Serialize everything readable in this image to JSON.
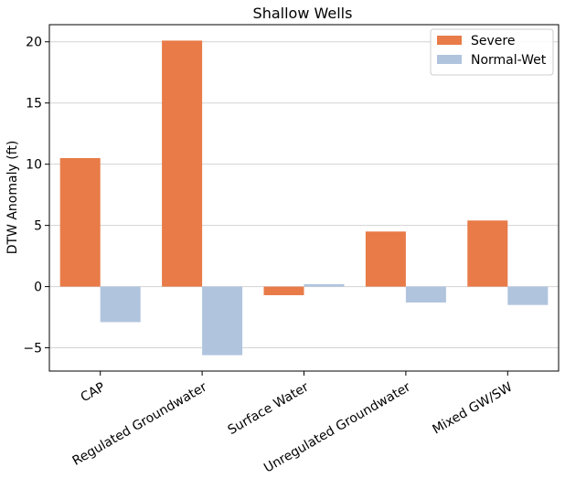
{
  "chart_data": {
    "type": "bar",
    "title": "Shallow Wells",
    "xlabel": "",
    "ylabel": "DTW Anomaly (ft)",
    "categories": [
      "CAP",
      "Regulated Groundwater",
      "Surface Water",
      "Unregulated Groundwater",
      "Mixed GW/SW"
    ],
    "series": [
      {
        "name": "Severe",
        "color": "#E87B48",
        "values": [
          10.5,
          20.1,
          -0.7,
          4.5,
          5.4
        ]
      },
      {
        "name": "Normal-Wet",
        "color": "#B0C4DE",
        "values": [
          -2.9,
          -5.6,
          0.2,
          -1.3,
          -1.5
        ]
      }
    ],
    "ylim": [
      -6.9,
      21.4
    ],
    "yticks": [
      -5,
      0,
      5,
      10,
      15,
      20
    ],
    "ytick_labels": [
      "−5",
      "0",
      "5",
      "10",
      "15",
      "20"
    ],
    "grid": "y",
    "legend_position": "top-right"
  }
}
